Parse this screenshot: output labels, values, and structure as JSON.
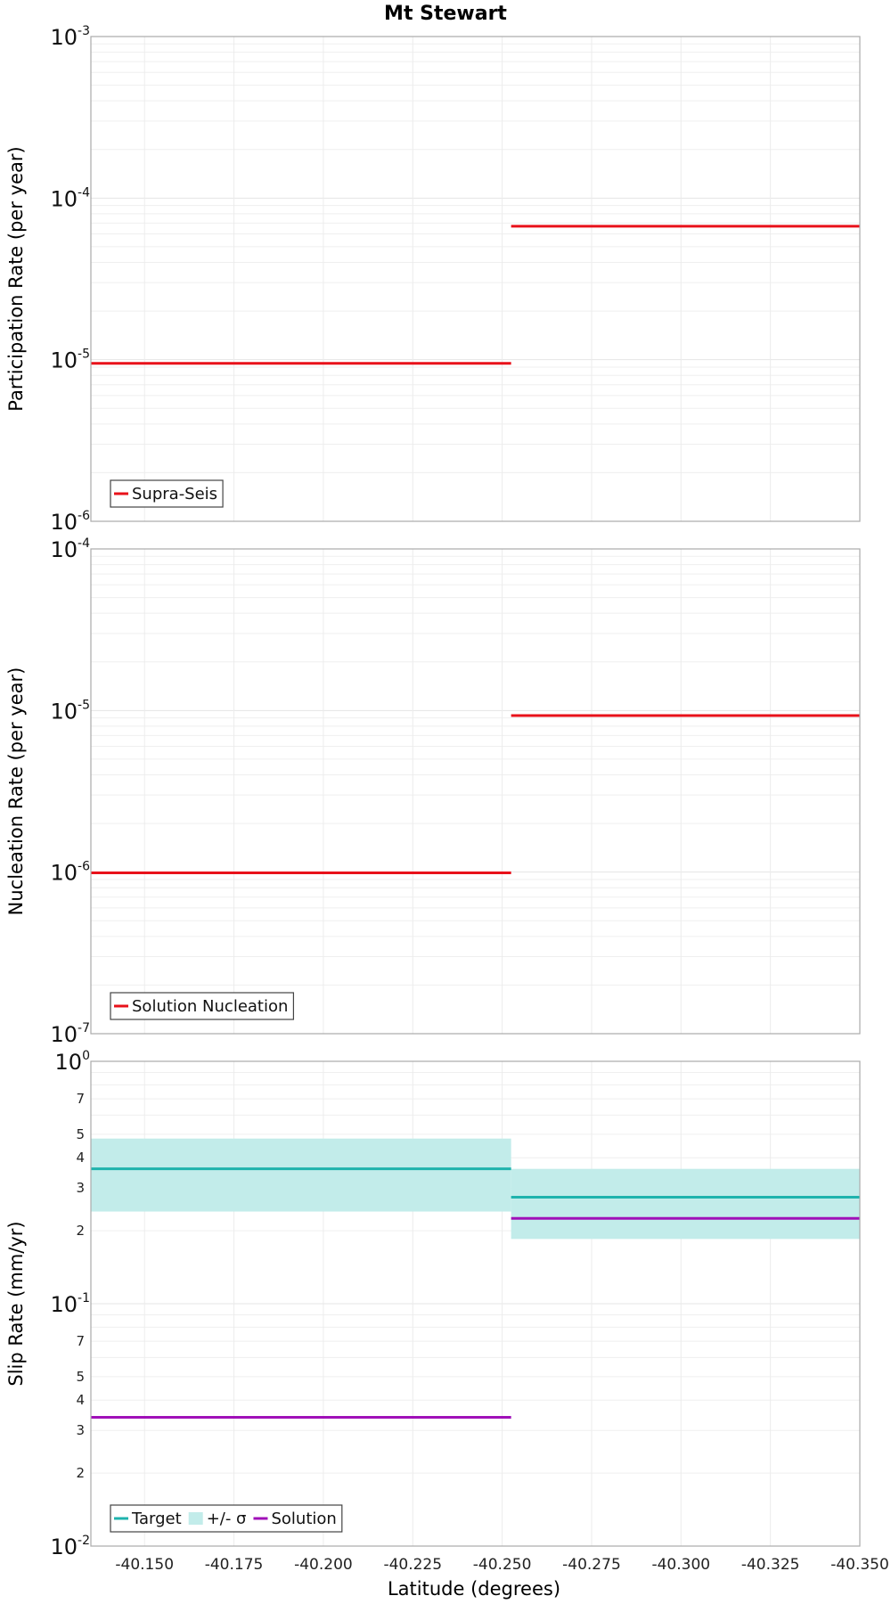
{
  "title": "Mt Stewart",
  "chart_data": [
    {
      "type": "line",
      "ylabel": "Participation Rate (per year)",
      "yscale": "log",
      "ylim": [
        1e-06,
        0.001
      ],
      "xlim": [
        -40.135,
        -40.35
      ],
      "tick_labels_y": [
        {
          "value": 0.001,
          "base": "10",
          "exp": "-3"
        },
        {
          "value": 0.0001,
          "base": "10",
          "exp": "-4"
        },
        {
          "value": 1e-05,
          "base": "10",
          "exp": "-5"
        },
        {
          "value": 1e-06,
          "base": "10",
          "exp": "-6"
        }
      ],
      "minor_labels_y": [],
      "series": [
        {
          "name": "Supra-Seis",
          "color": "#e8111a",
          "segments": [
            {
              "x0": -40.135,
              "x1": -40.2525,
              "y": 9.5e-06
            },
            {
              "x0": -40.2525,
              "x1": -40.35,
              "y": 6.7e-05
            }
          ]
        }
      ],
      "bands": [],
      "legend": [
        {
          "label": "Supra-Seis",
          "kind": "line",
          "color": "#e8111a"
        }
      ],
      "legend_position": "bottom-left"
    },
    {
      "type": "line",
      "ylabel": "Nucleation Rate (per year)",
      "yscale": "log",
      "ylim": [
        1e-07,
        0.0001
      ],
      "xlim": [
        -40.135,
        -40.35
      ],
      "tick_labels_y": [
        {
          "value": 0.0001,
          "base": "10",
          "exp": "-4"
        },
        {
          "value": 1e-05,
          "base": "10",
          "exp": "-5"
        },
        {
          "value": 1e-06,
          "base": "10",
          "exp": "-6"
        },
        {
          "value": 1e-07,
          "base": "10",
          "exp": "-7"
        }
      ],
      "minor_labels_y": [],
      "series": [
        {
          "name": "Solution Nucleation",
          "color": "#e8111a",
          "segments": [
            {
              "x0": -40.135,
              "x1": -40.2525,
              "y": 9.9e-07
            },
            {
              "x0": -40.2525,
              "x1": -40.35,
              "y": 9.3e-06
            }
          ]
        }
      ],
      "bands": [],
      "legend": [
        {
          "label": "Solution Nucleation",
          "kind": "line",
          "color": "#e8111a"
        }
      ],
      "legend_position": "bottom-left"
    },
    {
      "type": "line",
      "ylabel": "Slip Rate (mm/yr)",
      "xlabel": "Latitude (degrees)",
      "yscale": "log",
      "ylim": [
        0.01,
        1
      ],
      "xlim": [
        -40.135,
        -40.35
      ],
      "x_ticks": [
        -40.15,
        -40.175,
        -40.2,
        -40.225,
        -40.25,
        -40.275,
        -40.3,
        -40.325,
        -40.35
      ],
      "x_tick_labels": [
        "-40.150",
        "-40.175",
        "-40.200",
        "-40.225",
        "-40.250",
        "-40.275",
        "-40.300",
        "-40.325",
        "-40.350"
      ],
      "tick_labels_y": [
        {
          "value": 1,
          "base": "10",
          "exp": "0"
        },
        {
          "value": 0.1,
          "base": "10",
          "exp": "-1"
        },
        {
          "value": 0.01,
          "base": "10",
          "exp": "-2"
        }
      ],
      "minor_labels_y": [
        {
          "value": 0.7,
          "label": "7"
        },
        {
          "value": 0.5,
          "label": "5"
        },
        {
          "value": 0.4,
          "label": "4"
        },
        {
          "value": 0.3,
          "label": "3"
        },
        {
          "value": 0.2,
          "label": "2"
        },
        {
          "value": 0.07,
          "label": "7"
        },
        {
          "value": 0.05,
          "label": "5"
        },
        {
          "value": 0.04,
          "label": "4"
        },
        {
          "value": 0.03,
          "label": "3"
        },
        {
          "value": 0.02,
          "label": "2"
        }
      ],
      "bands": [
        {
          "name": "+/- σ",
          "color": "#c2ecea",
          "segments": [
            {
              "x0": -40.135,
              "x1": -40.2525,
              "ylow": 0.24,
              "yhigh": 0.48
            },
            {
              "x0": -40.2525,
              "x1": -40.35,
              "ylow": 0.185,
              "yhigh": 0.36
            }
          ]
        }
      ],
      "series": [
        {
          "name": "Target",
          "color": "#1fb3ad",
          "segments": [
            {
              "x0": -40.135,
              "x1": -40.2525,
              "y": 0.36
            },
            {
              "x0": -40.2525,
              "x1": -40.35,
              "y": 0.275
            }
          ]
        },
        {
          "name": "Solution",
          "color": "#a010b8",
          "segments": [
            {
              "x0": -40.135,
              "x1": -40.2525,
              "y": 0.034
            },
            {
              "x0": -40.2525,
              "x1": -40.35,
              "y": 0.225
            }
          ]
        }
      ],
      "legend": [
        {
          "label": "Target",
          "kind": "line",
          "color": "#1fb3ad"
        },
        {
          "label": "+/- σ",
          "kind": "box",
          "color": "#c2ecea"
        },
        {
          "label": "Solution",
          "kind": "line",
          "color": "#a010b8"
        }
      ],
      "legend_position": "bottom-left"
    }
  ]
}
